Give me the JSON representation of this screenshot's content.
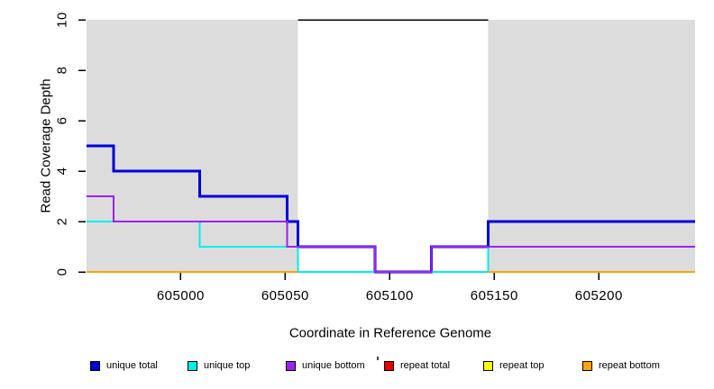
{
  "chart_data": {
    "type": "line",
    "step": true,
    "title": "",
    "xlabel": "Coordinate in Reference Genome",
    "ylabel": "Read Coverage Depth",
    "xlim": [
      604955,
      605246
    ],
    "ylim": [
      0,
      10
    ],
    "x_ticks": [
      605000,
      605050,
      605100,
      605150,
      605200
    ],
    "y_ticks": [
      0,
      2,
      4,
      6,
      8,
      10
    ],
    "grid": false,
    "background_color": "#FFFFFF",
    "shaded_regions": {
      "color": "#DCDCDC",
      "ranges": [
        [
          604955,
          605056
        ],
        [
          605147,
          605246
        ]
      ]
    },
    "top_marker_line": {
      "y": 10,
      "x_range": [
        605056,
        605147
      ],
      "color": "#000000"
    },
    "series": [
      {
        "id": "unique-total",
        "name": "unique total",
        "color": "#0000DD",
        "width": 3,
        "paths": [
          [
            [
              604955,
              5
            ],
            [
              604968,
              4
            ],
            [
              605009,
              3
            ],
            [
              605051,
              2
            ],
            [
              605056,
              1
            ],
            [
              605093,
              0
            ],
            [
              605120,
              1
            ],
            [
              605147,
              2
            ],
            [
              605246,
              2
            ]
          ]
        ]
      },
      {
        "id": "unique-top",
        "name": "unique top",
        "color": "#00EEEE",
        "width": 2,
        "paths": [
          [
            [
              604955,
              2
            ],
            [
              605009,
              1
            ],
            [
              605056,
              0
            ],
            [
              605147,
              1
            ],
            [
              605246,
              1
            ]
          ]
        ]
      },
      {
        "id": "unique-bottom",
        "name": "unique bottom",
        "color": "#A020F0",
        "width": 2,
        "paths": [
          [
            [
              604955,
              3
            ],
            [
              604968,
              2
            ],
            [
              605051,
              1
            ],
            [
              605093,
              0
            ],
            [
              605120,
              1
            ],
            [
              605246,
              1
            ]
          ]
        ]
      },
      {
        "id": "repeat-total",
        "name": "repeat total",
        "color": "#EE0000",
        "width": 2,
        "paths": [
          [
            [
              604955,
              0
            ],
            [
              605056,
              0
            ]
          ],
          [
            [
              605147,
              0
            ],
            [
              605246,
              0
            ]
          ]
        ]
      },
      {
        "id": "repeat-top",
        "name": "repeat top",
        "color": "#FFFF00",
        "width": 2,
        "paths": [
          [
            [
              604955,
              0
            ],
            [
              605056,
              0
            ]
          ],
          [
            [
              605147,
              0
            ],
            [
              605246,
              0
            ]
          ]
        ]
      },
      {
        "id": "repeat-bottom",
        "name": "repeat bottom",
        "color": "#FFA500",
        "width": 2,
        "paths": [
          [
            [
              604955,
              0
            ],
            [
              605056,
              0
            ]
          ],
          [
            [
              605147,
              0
            ],
            [
              605246,
              0
            ]
          ]
        ]
      }
    ],
    "legend": {
      "position": "bottom",
      "entries": [
        {
          "label": "unique total",
          "color": "#0000DD"
        },
        {
          "label": "unique top",
          "color": "#00EEEE"
        },
        {
          "label": "unique bottom",
          "color": "#A020F0"
        },
        {
          "label": "repeat total",
          "color": "#EE0000"
        },
        {
          "label": "repeat top",
          "color": "#FFFF00"
        },
        {
          "label": "repeat bottom",
          "color": "#FFA500"
        }
      ]
    }
  }
}
